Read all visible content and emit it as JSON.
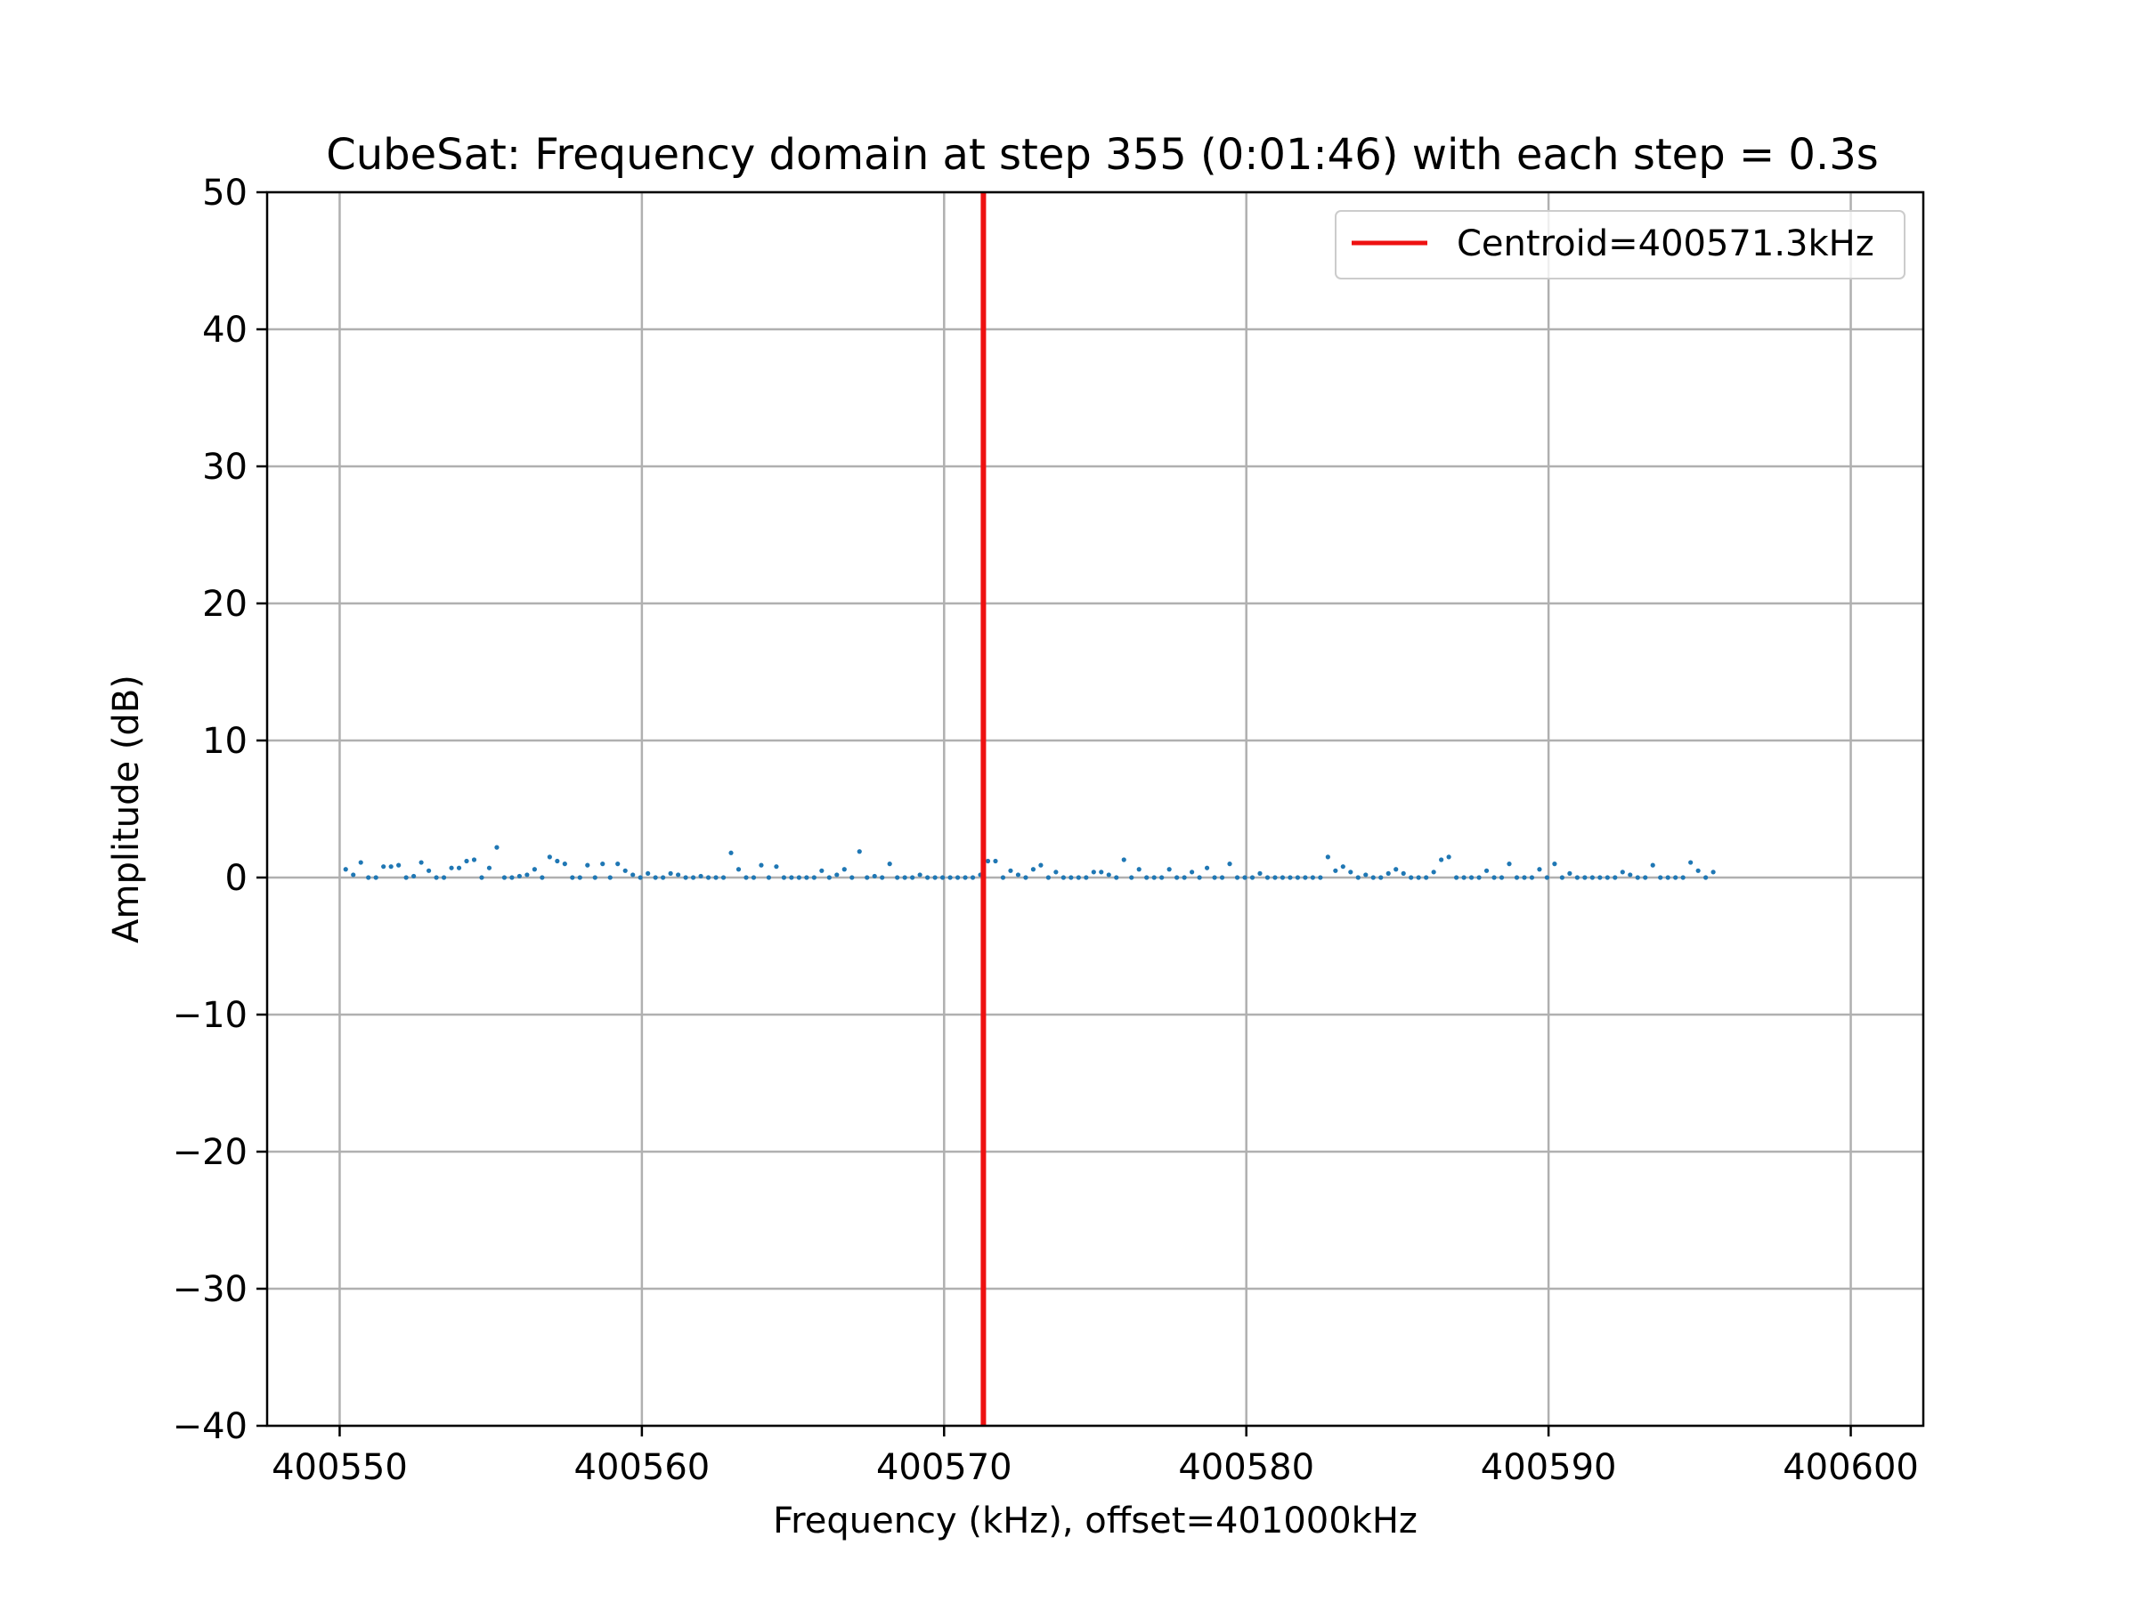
{
  "chart_data": {
    "type": "scatter",
    "title": "CubeSat: Frequency domain at step 355 (0:01:46) with each step = 0.3s",
    "xlabel": "Frequency (kHz), offset=401000kHz",
    "ylabel": "Amplitude (dB)",
    "xlim": [
      400547.6,
      400602.4
    ],
    "ylim": [
      -40,
      50
    ],
    "xticks": [
      400550,
      400560,
      400570,
      400580,
      400590,
      400600
    ],
    "xtick_labels": [
      "400550",
      "400560",
      "400570",
      "400580",
      "400590",
      "400600"
    ],
    "yticks": [
      -40,
      -30,
      -20,
      -10,
      0,
      10,
      20,
      30,
      40,
      50
    ],
    "ytick_labels": [
      "−40",
      "−30",
      "−20",
      "−10",
      "0",
      "10",
      "20",
      "30",
      "40",
      "50"
    ],
    "grid": true,
    "legend_position": "top-right",
    "colors": {
      "points": "#1f77b4",
      "centroid": "#ee1111",
      "grid": "#b0b0b0",
      "axes": "#000000"
    },
    "centroid": {
      "label": "Centroid=400571.3kHz",
      "x": 400571.3
    },
    "series": [
      {
        "x_start": 400550.2,
        "x_step": 0.25,
        "y": [
          0.6,
          0.2,
          1.1,
          0.0,
          0.0,
          0.8,
          0.8,
          0.9,
          0.0,
          0.1,
          1.1,
          0.5,
          0.0,
          0.0,
          0.7,
          0.7,
          1.2,
          1.3,
          0.0,
          0.7,
          2.2,
          0.0,
          0.0,
          0.1,
          0.2,
          0.6,
          0.0,
          1.5,
          1.2,
          1.0,
          0.0,
          0.0,
          0.9,
          0.0,
          1.0,
          0.0,
          1.0,
          0.5,
          0.2,
          0.0,
          0.3,
          0.0,
          0.0,
          0.3,
          0.2,
          0.0,
          0.0,
          0.1,
          0.0,
          0.0,
          0.0,
          1.8,
          0.6,
          0.0,
          0.0,
          0.9,
          0.0,
          0.8,
          0.0,
          0.0,
          0.0,
          0.0,
          0.0,
          0.5,
          0.0,
          0.2,
          0.6,
          0.0,
          1.9,
          0.0,
          0.1,
          0.0,
          1.0,
          0.0,
          0.0,
          0.0,
          0.2,
          0.0,
          0.0,
          0.0,
          0.0,
          0.0,
          0.0,
          0.0,
          0.2,
          1.2,
          1.2,
          0.0,
          0.5,
          0.2,
          0.0,
          0.6,
          0.9,
          0.0,
          0.4,
          0.0,
          0.0,
          0.0,
          0.0,
          0.4,
          0.4,
          0.2,
          0.0,
          1.3,
          0.0,
          0.6,
          0.0,
          0.0,
          0.0,
          0.6,
          0.0,
          0.0,
          0.4,
          0.0,
          0.7,
          0.0,
          0.0,
          1.0,
          0.0,
          0.0,
          0.0,
          0.3,
          0.0,
          0.0,
          0.0,
          0.0,
          0.0,
          0.0,
          0.0,
          0.0,
          1.5,
          0.5,
          0.8,
          0.4,
          0.0,
          0.2,
          0.0,
          0.0,
          0.3,
          0.6,
          0.3,
          0.0,
          0.0,
          0.0,
          0.4,
          1.3,
          1.5,
          0.0,
          0.0,
          0.0,
          0.0,
          0.5,
          0.0,
          0.0,
          1.0,
          0.0,
          0.0,
          0.0,
          0.6,
          0.0,
          1.0,
          0.0,
          0.3,
          0.0,
          0.0,
          0.0,
          0.0,
          0.0,
          0.0,
          0.4,
          0.2,
          0.0,
          0.0,
          0.9,
          0.0,
          0.0,
          0.0,
          0.0,
          1.1,
          0.5,
          0.0,
          0.4
        ]
      }
    ]
  }
}
